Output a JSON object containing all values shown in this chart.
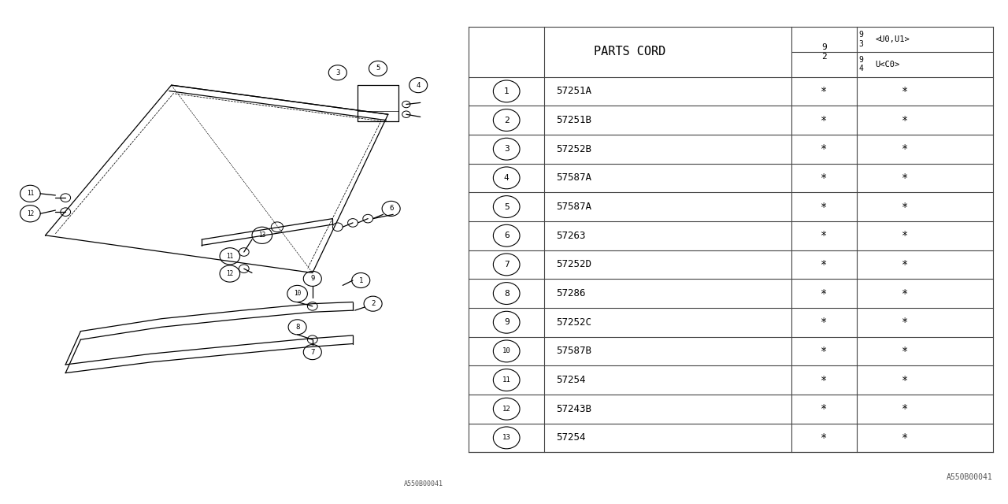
{
  "bg_color": "#ffffff",
  "line_color": "#000000",
  "font_color": "#000000",
  "table_line_color": "#444444",
  "col_header": "PARTS CORD",
  "watermark": "A550B00041",
  "rows": [
    {
      "num": "1",
      "part": "57251A"
    },
    {
      "num": "2",
      "part": "57251B"
    },
    {
      "num": "3",
      "part": "57252B"
    },
    {
      "num": "4",
      "part": "57587A"
    },
    {
      "num": "5",
      "part": "57587A"
    },
    {
      "num": "6",
      "part": "57263"
    },
    {
      "num": "7",
      "part": "57252D"
    },
    {
      "num": "8",
      "part": "57286"
    },
    {
      "num": "9",
      "part": "57252C"
    },
    {
      "num": "10",
      "part": "57587B"
    },
    {
      "num": "11",
      "part": "57254"
    },
    {
      "num": "12",
      "part": "57243B"
    },
    {
      "num": "13",
      "part": "57254"
    }
  ]
}
